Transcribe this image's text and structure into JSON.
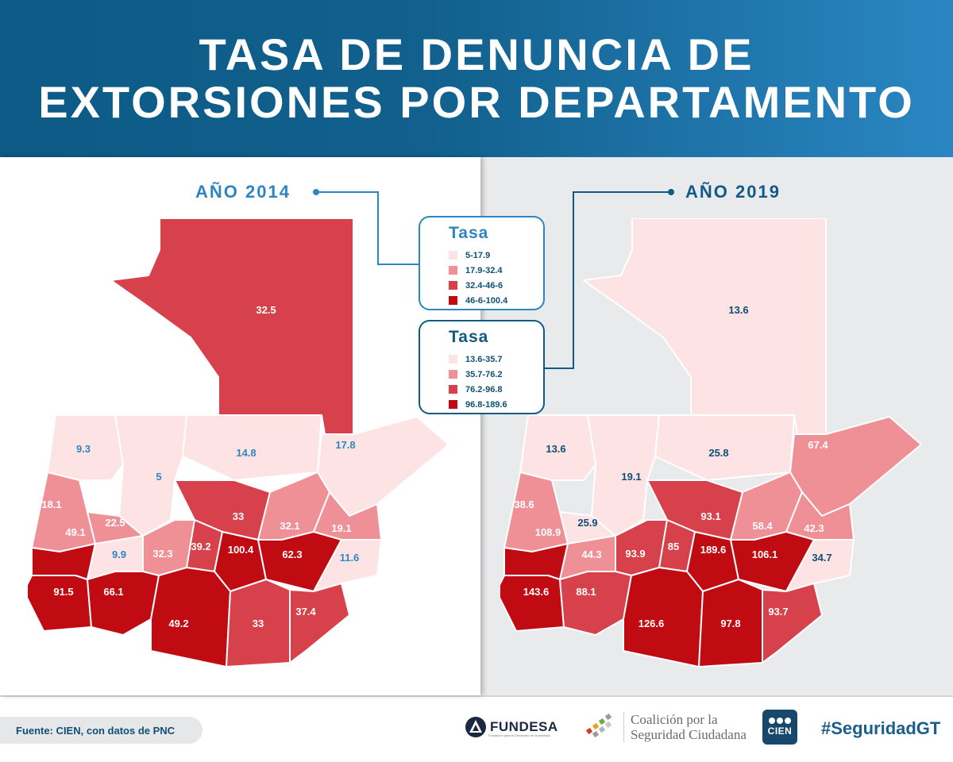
{
  "header": {
    "title_line1": "TASA DE DENUNCIA DE",
    "title_line2": "EXTORSIONES POR DEPARTAMENTO"
  },
  "colors": {
    "header_dark": "#0d5a86",
    "header_light": "#2a86c2",
    "class1": "#fde3e3",
    "class2": "#ee9096",
    "class3": "#d6414b",
    "class4": "#c00b13"
  },
  "map_2014": {
    "year_label": "AÑO 2014",
    "legend_title": "Tasa",
    "legend_items": [
      {
        "label": "5-17.9",
        "color": "#fde3e3"
      },
      {
        "label": "17.9-32.4",
        "color": "#ee9096"
      },
      {
        "label": "32.4-46-6",
        "color": "#d6414b"
      },
      {
        "label": "46-6-100.4",
        "color": "#c00b13"
      }
    ],
    "values": [
      "32.5",
      "9.3",
      "5",
      "14.8",
      "17.8",
      "18.1",
      "22.5",
      "49.1",
      "33",
      "32.1",
      "19.1",
      "9.9",
      "32.3",
      "39.2",
      "100.4",
      "62.3",
      "11.6",
      "91.5",
      "66.1",
      "49.2",
      "33",
      "37.4"
    ]
  },
  "map_2019": {
    "year_label": "AÑO 2019",
    "legend_title": "Tasa",
    "legend_items": [
      {
        "label": "13.6-35.7",
        "color": "#fde3e3"
      },
      {
        "label": "35.7-76.2",
        "color": "#ee9096"
      },
      {
        "label": "76.2-96.8",
        "color": "#d6414b"
      },
      {
        "label": "96.8-189.6",
        "color": "#c00b13"
      }
    ],
    "values": [
      "13.6",
      "13.6",
      "19.1",
      "25.8",
      "67.4",
      "38.6",
      "25.9",
      "108.9",
      "93.1",
      "58.4",
      "42.3",
      "44.3",
      "93.9",
      "85",
      "189.6",
      "106.1",
      "34.7",
      "143.6",
      "88.1",
      "126.6",
      "97.8",
      "93.7"
    ]
  },
  "footer": {
    "source": "Fuente: CIEN, con datos de PNC",
    "fundesa_name": "FUNDESA",
    "fundesa_sub": "Fundación para el Desarrollo de Guatemala",
    "coalicion_line1": "Coalición por la",
    "coalicion_line2": "Seguridad Ciudadana",
    "cien_label": "CIEN",
    "hashtag": "#SeguridadGT"
  }
}
